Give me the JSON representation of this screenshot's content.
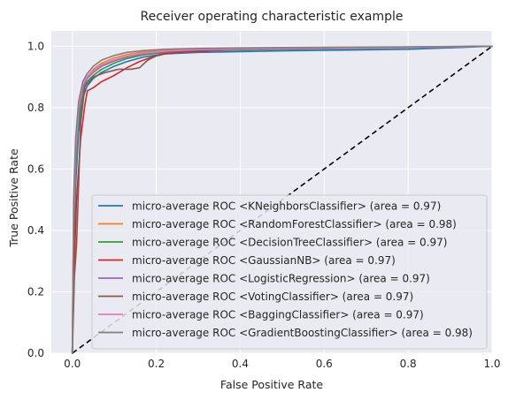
{
  "chart_data": {
    "type": "line",
    "title": "Receiver operating characteristic example",
    "xlabel": "False Positive Rate",
    "ylabel": "True Positive Rate",
    "xlim": [
      -0.05,
      1.0
    ],
    "ylim": [
      0.0,
      1.05
    ],
    "xticks": [
      0.0,
      0.2,
      0.4,
      0.6,
      0.8,
      1.0
    ],
    "yticks": [
      0.0,
      0.2,
      0.4,
      0.6,
      0.8,
      1.0
    ],
    "xtick_labels": [
      "0.0",
      "0.2",
      "0.4",
      "0.6",
      "0.8",
      "1.0"
    ],
    "ytick_labels": [
      "0.0",
      "0.2",
      "0.4",
      "0.6",
      "0.8",
      "1.0"
    ],
    "grid": true,
    "legend_position": "lower-right",
    "background_color": "#eaeaf2",
    "reference_line": {
      "x": [
        0,
        1
      ],
      "y": [
        0,
        1
      ],
      "color": "#000000",
      "style": "dashed"
    },
    "series": [
      {
        "name": "micro-average ROC <KNeighborsClassifier> (area = 0.97)",
        "color": "#1f77b4",
        "x": [
          0,
          0.003,
          0.008,
          0.015,
          0.025,
          0.035,
          0.05,
          0.07,
          0.1,
          0.13,
          0.17,
          0.22,
          0.3,
          0.5,
          0.8,
          1.0
        ],
        "y": [
          0,
          0.3,
          0.55,
          0.72,
          0.83,
          0.87,
          0.895,
          0.915,
          0.935,
          0.95,
          0.965,
          0.975,
          0.98,
          0.985,
          0.99,
          1.0
        ]
      },
      {
        "name": "micro-average ROC <RandomForestClassifier> (area = 0.98)",
        "color": "#ff7f0e",
        "x": [
          0,
          0.003,
          0.008,
          0.015,
          0.025,
          0.035,
          0.05,
          0.07,
          0.1,
          0.13,
          0.17,
          0.22,
          0.3,
          0.5,
          0.8,
          1.0
        ],
        "y": [
          0,
          0.4,
          0.62,
          0.77,
          0.86,
          0.9,
          0.925,
          0.945,
          0.962,
          0.973,
          0.982,
          0.987,
          0.99,
          0.994,
          0.997,
          1.0
        ]
      },
      {
        "name": "micro-average ROC <DecisionTreeClassifier> (area = 0.97)",
        "color": "#2ca02c",
        "x": [
          0,
          0.003,
          0.008,
          0.015,
          0.025,
          0.035,
          0.05,
          0.07,
          0.1,
          0.13,
          0.17,
          0.22,
          0.3,
          0.5,
          0.8,
          1.0
        ],
        "y": [
          0,
          0.38,
          0.6,
          0.75,
          0.85,
          0.885,
          0.905,
          0.925,
          0.945,
          0.96,
          0.972,
          0.98,
          0.985,
          0.99,
          0.995,
          1.0
        ]
      },
      {
        "name": "micro-average ROC <GaussianNB> (area = 0.97)",
        "color": "#d62728",
        "x": [
          0,
          0.005,
          0.01,
          0.02,
          0.03,
          0.036,
          0.05,
          0.07,
          0.1,
          0.13,
          0.16,
          0.19,
          0.22,
          0.25,
          0.4,
          0.7,
          1.0
        ],
        "y": [
          0,
          0.3,
          0.5,
          0.7,
          0.81,
          0.855,
          0.865,
          0.885,
          0.905,
          0.93,
          0.95,
          0.965,
          0.975,
          0.98,
          0.99,
          0.995,
          1.0
        ]
      },
      {
        "name": "micro-average ROC <LogisticRegression> (area = 0.97)",
        "color": "#9467bd",
        "x": [
          0,
          0.003,
          0.008,
          0.015,
          0.025,
          0.035,
          0.05,
          0.07,
          0.1,
          0.13,
          0.17,
          0.22,
          0.3,
          0.5,
          0.8,
          1.0
        ],
        "y": [
          0,
          0.42,
          0.63,
          0.78,
          0.865,
          0.895,
          0.915,
          0.935,
          0.952,
          0.965,
          0.975,
          0.982,
          0.987,
          0.992,
          0.996,
          1.0
        ]
      },
      {
        "name": "micro-average ROC <VotingClassifier> (area = 0.97)",
        "color": "#8c564b",
        "x": [
          0,
          0.005,
          0.01,
          0.015,
          0.02,
          0.03,
          0.05,
          0.08,
          0.11,
          0.14,
          0.16,
          0.18,
          0.21,
          0.24,
          0.35,
          0.6,
          1.0
        ],
        "y": [
          0,
          0.25,
          0.35,
          0.55,
          0.75,
          0.87,
          0.9,
          0.915,
          0.925,
          0.925,
          0.93,
          0.955,
          0.975,
          0.982,
          0.99,
          0.995,
          1.0
        ]
      },
      {
        "name": "micro-average ROC <BaggingClassifier> (area = 0.97)",
        "color": "#e377c2",
        "x": [
          0,
          0.003,
          0.008,
          0.015,
          0.025,
          0.035,
          0.05,
          0.07,
          0.1,
          0.13,
          0.17,
          0.22,
          0.3,
          0.5,
          0.8,
          1.0
        ],
        "y": [
          0,
          0.45,
          0.66,
          0.8,
          0.875,
          0.9,
          0.92,
          0.94,
          0.956,
          0.968,
          0.978,
          0.984,
          0.989,
          0.993,
          0.996,
          1.0
        ]
      },
      {
        "name": "micro-average ROC <GradientBoostingClassifier> (area = 0.98)",
        "color": "#7f7f7f",
        "x": [
          0,
          0.003,
          0.008,
          0.015,
          0.025,
          0.035,
          0.05,
          0.07,
          0.1,
          0.13,
          0.17,
          0.22,
          0.3,
          0.5,
          0.8,
          1.0
        ],
        "y": [
          0,
          0.5,
          0.7,
          0.82,
          0.885,
          0.91,
          0.935,
          0.955,
          0.97,
          0.98,
          0.986,
          0.99,
          0.993,
          0.996,
          0.998,
          1.0
        ]
      }
    ]
  }
}
